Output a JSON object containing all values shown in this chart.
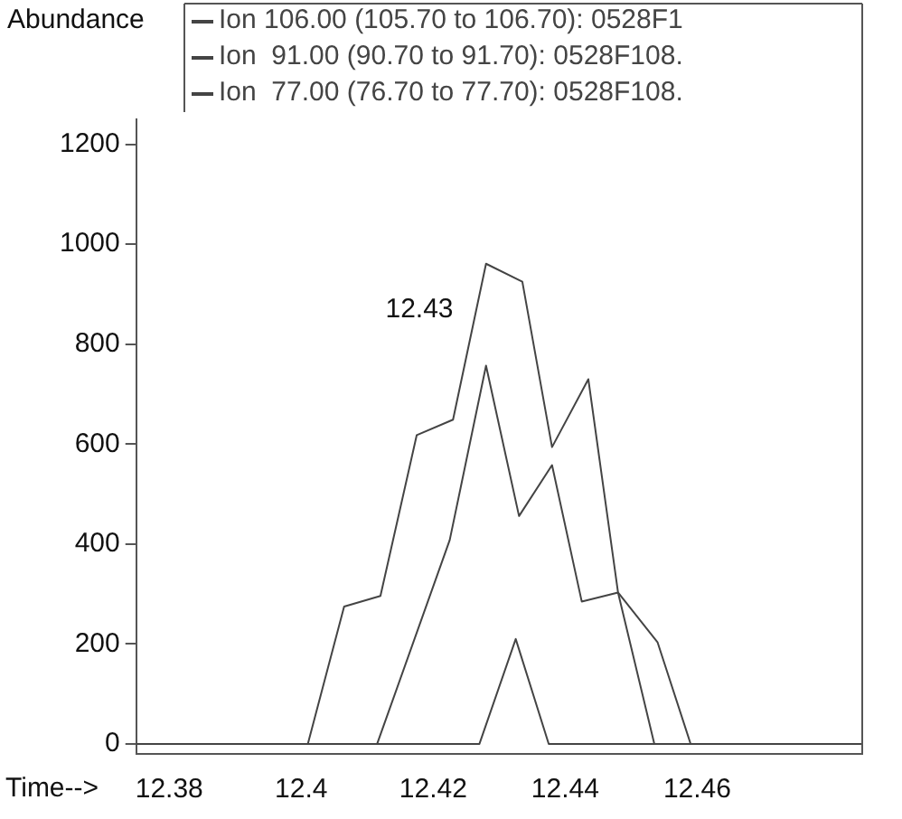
{
  "chart_data": {
    "type": "line",
    "ylabel": "Abundance",
    "xlabel": "Time-->",
    "legend": "top",
    "xlim": [
      12.375,
      12.485
    ],
    "xticks": [
      12.38,
      12.4,
      12.42,
      12.44,
      12.46
    ],
    "ylim": [
      -20,
      1250
    ],
    "yticks": [
      0,
      200,
      400,
      600,
      800,
      1000,
      1200
    ],
    "grid": false,
    "marker": "none",
    "line_style": "solid",
    "annotations": [
      "12.43"
    ],
    "series": [
      {
        "name": "Ion 106.00 (105.70 to 106.70): 0528F1",
        "color": "#444444",
        "x": [
          12.375,
          12.401,
          12.4065,
          12.412,
          12.4175,
          12.423,
          12.428,
          12.4335,
          12.438,
          12.4435,
          12.448,
          12.454,
          12.459,
          12.485
        ],
        "values": [
          0,
          0,
          275,
          296,
          618,
          649,
          961,
          925,
          594,
          730,
          303,
          203,
          0,
          0
        ]
      },
      {
        "name": "Ion  91.00 (90.70 to 91.70): 0528F108.",
        "color": "#444444",
        "x": [
          12.375,
          12.4115,
          12.4225,
          12.428,
          12.433,
          12.438,
          12.4425,
          12.448,
          12.4535,
          12.485
        ],
        "values": [
          0,
          0,
          408,
          757,
          456,
          558,
          285,
          303,
          0,
          0
        ]
      },
      {
        "name": "Ion  77.00 (76.70 to 77.70): 0528F108.",
        "color": "#444444",
        "x": [
          12.375,
          12.427,
          12.4325,
          12.4375,
          12.485
        ],
        "values": [
          0,
          0,
          210,
          0,
          0
        ]
      }
    ]
  }
}
